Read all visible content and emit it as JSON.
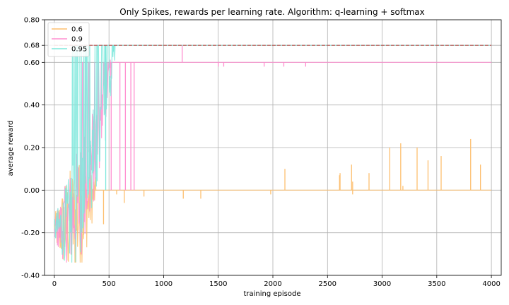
{
  "chart_data": {
    "type": "line",
    "title": "Only Spikes, rewards per learning rate. Algorithm: q-learning + softmax",
    "xlabel": "training episode",
    "ylabel": "average reward",
    "xlim": [
      -90,
      4090
    ],
    "ylim": [
      -0.4,
      0.8
    ],
    "x_ticks": [
      0,
      500,
      1000,
      1500,
      2000,
      2500,
      3000,
      3500,
      4000
    ],
    "x_tick_labels": [
      "0",
      "500",
      "1000",
      "1500",
      "2000",
      "2500",
      "3000",
      "3500",
      "4000"
    ],
    "y_ticks": [
      -0.4,
      -0.2,
      0.0,
      0.2,
      0.4,
      0.6,
      0.68,
      0.8
    ],
    "y_tick_labels": [
      "-0.40",
      "-0.20",
      "0.00",
      "0.20",
      "0.40",
      "0.60",
      "0.68",
      "0.80"
    ],
    "grid": true,
    "legend_position": "top-left",
    "reference_line": {
      "y": 0.68,
      "x_range": [
        0,
        4000
      ],
      "color": "#c0504d",
      "style": "dashed"
    },
    "series": [
      {
        "name": "0.6",
        "color": "#fdbf6f",
        "base_value": 0.0,
        "converge_x": 380,
        "spikes": [
          [
            2110,
            0.1
          ],
          [
            2610,
            0.07
          ],
          [
            2615,
            0.08
          ],
          [
            2720,
            0.12
          ],
          [
            2730,
            0.04
          ],
          [
            2880,
            0.08
          ],
          [
            3070,
            0.2
          ],
          [
            3170,
            0.22
          ],
          [
            3190,
            0.02
          ],
          [
            3320,
            0.2
          ],
          [
            3420,
            0.14
          ],
          [
            3540,
            0.16
          ],
          [
            3810,
            0.24
          ],
          [
            3900,
            0.12
          ]
        ],
        "dips": [
          [
            450,
            -0.16
          ],
          [
            570,
            -0.02
          ],
          [
            640,
            -0.06
          ],
          [
            820,
            -0.03
          ],
          [
            1180,
            -0.04
          ],
          [
            1340,
            -0.04
          ],
          [
            1980,
            -0.02
          ],
          [
            2730,
            -0.02
          ]
        ]
      },
      {
        "name": "0.9",
        "color": "#ff8fd0",
        "base_value": 0.6,
        "converge_x": 520,
        "spikes": [
          [
            1170,
            0.68
          ]
        ],
        "dips": [
          [
            520,
            0.0
          ],
          [
            600,
            0.0
          ],
          [
            650,
            0.0
          ],
          [
            700,
            0.0
          ],
          [
            730,
            0.0
          ],
          [
            1500,
            0.58
          ],
          [
            1550,
            0.58
          ],
          [
            1920,
            0.58
          ],
          [
            2100,
            0.58
          ],
          [
            2300,
            0.58
          ]
        ]
      },
      {
        "name": "0.95",
        "color": "#7ee8dc",
        "base_value": 0.68,
        "converge_x": 560,
        "spikes": [],
        "dips": [
          [
            470,
            0.0
          ],
          [
            540,
            0.65
          ]
        ]
      }
    ]
  }
}
